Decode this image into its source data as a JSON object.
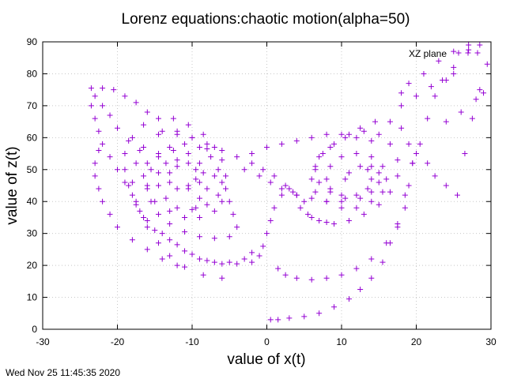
{
  "chart_data": {
    "type": "scatter",
    "title": "Lorenz equations:chaotic motion(alpha=50)",
    "xlabel": "value of x(t)",
    "ylabel": "value of z(t)",
    "xlim": [
      -30,
      30
    ],
    "ylim": [
      0,
      90
    ],
    "xticks": [
      "-30",
      "-20",
      "-10",
      "0",
      "10",
      "20",
      "30"
    ],
    "yticks": [
      "0",
      "10",
      "20",
      "30",
      "40",
      "50",
      "60",
      "70",
      "80",
      "90"
    ],
    "grid": true,
    "legend_position": "top-right",
    "marker": "plus",
    "color": "#9400d3",
    "series": [
      {
        "name": "XZ plane",
        "points": [
          [
            0.5,
            3
          ],
          [
            1.5,
            3
          ],
          [
            3,
            3.5
          ],
          [
            5,
            4
          ],
          [
            7,
            5
          ],
          [
            9,
            7
          ],
          [
            11,
            9.5
          ],
          [
            12.5,
            12.5
          ],
          [
            14,
            16
          ],
          [
            15.5,
            21
          ],
          [
            16.5,
            27
          ],
          [
            17.5,
            33
          ],
          [
            18.5,
            42
          ],
          [
            19.5,
            52
          ],
          [
            20.5,
            58
          ],
          [
            21.5,
            66
          ],
          [
            22.5,
            73
          ],
          [
            23.5,
            78
          ],
          [
            25,
            82
          ],
          [
            27,
            87.5
          ],
          [
            28.5,
            89
          ],
          [
            20,
            55
          ],
          [
            21.5,
            52
          ],
          [
            22.5,
            48
          ],
          [
            24,
            45
          ],
          [
            25.5,
            42
          ],
          [
            26.5,
            55
          ],
          [
            27.5,
            66
          ],
          [
            28.5,
            75
          ],
          [
            29.5,
            83
          ],
          [
            23,
            84
          ],
          [
            25,
            87
          ],
          [
            27,
            89
          ],
          [
            1.5,
            19
          ],
          [
            2.5,
            17
          ],
          [
            4,
            16
          ],
          [
            6,
            15.5
          ],
          [
            8,
            16
          ],
          [
            10,
            17
          ],
          [
            12,
            19
          ],
          [
            14,
            22
          ],
          [
            16,
            27
          ],
          [
            17.5,
            32
          ],
          [
            18.5,
            38
          ],
          [
            19,
            45
          ],
          [
            19.5,
            52
          ],
          [
            19,
            58
          ],
          [
            18,
            63
          ],
          [
            16.5,
            65
          ],
          [
            14.5,
            65
          ],
          [
            12.5,
            63
          ],
          [
            10.5,
            60
          ],
          [
            8.5,
            57
          ],
          [
            7,
            54
          ],
          [
            6.5,
            50
          ],
          [
            7,
            46
          ],
          [
            8.5,
            43
          ],
          [
            10.5,
            41
          ],
          [
            12.5,
            41
          ],
          [
            14,
            43
          ],
          [
            15,
            46
          ],
          [
            15,
            49
          ],
          [
            14,
            51
          ],
          [
            12.5,
            51
          ],
          [
            11,
            49
          ],
          [
            10.5,
            47
          ],
          [
            5,
            40
          ],
          [
            5.5,
            36
          ],
          [
            7,
            34
          ],
          [
            9,
            33
          ],
          [
            11,
            34
          ],
          [
            13,
            36
          ],
          [
            15,
            39
          ],
          [
            16.5,
            43
          ],
          [
            17.5,
            48
          ],
          [
            17.5,
            53
          ],
          [
            16.5,
            58
          ],
          [
            15,
            61
          ],
          [
            13,
            62
          ],
          [
            11,
            61
          ],
          [
            9,
            58
          ],
          [
            7.5,
            55
          ],
          [
            6.5,
            51
          ],
          [
            6,
            47
          ],
          [
            6.5,
            43
          ],
          [
            8,
            40
          ],
          [
            10,
            38
          ],
          [
            12,
            38
          ],
          [
            14,
            40
          ],
          [
            15.5,
            43
          ],
          [
            16,
            47
          ],
          [
            15.5,
            51
          ],
          [
            14,
            54
          ],
          [
            12,
            55
          ],
          [
            10,
            54
          ],
          [
            8.5,
            51
          ],
          [
            8,
            47
          ],
          [
            8.5,
            44
          ],
          [
            10,
            42
          ],
          [
            12,
            42
          ],
          [
            13.5,
            44
          ],
          [
            14,
            47
          ],
          [
            13.5,
            50
          ],
          [
            4,
            42
          ],
          [
            4.5,
            38
          ],
          [
            6,
            35
          ],
          [
            8,
            33.5
          ],
          [
            3,
            44
          ],
          [
            2,
            42
          ],
          [
            1,
            38
          ],
          [
            0.5,
            34
          ],
          [
            0,
            30
          ],
          [
            -0.5,
            26
          ],
          [
            -1,
            23
          ],
          [
            -2,
            21
          ],
          [
            -4,
            20.5
          ],
          [
            -6,
            20.5
          ],
          [
            -8,
            21.5
          ],
          [
            -10,
            23.5
          ],
          [
            -12,
            26.5
          ],
          [
            -14,
            30
          ],
          [
            -16,
            34
          ],
          [
            -17.5,
            39
          ],
          [
            -18.5,
            45
          ],
          [
            -19,
            50
          ],
          [
            -19,
            55
          ],
          [
            -18,
            60
          ],
          [
            -16.5,
            64
          ],
          [
            -14.5,
            66
          ],
          [
            -12.5,
            66
          ],
          [
            -10.5,
            64
          ],
          [
            -8.5,
            61
          ],
          [
            -7,
            57
          ],
          [
            -6,
            53
          ],
          [
            -5.5,
            48
          ],
          [
            -5.5,
            44
          ],
          [
            -6,
            40
          ],
          [
            -7,
            37
          ],
          [
            -9,
            35
          ],
          [
            -11,
            35
          ],
          [
            -13,
            37
          ],
          [
            -15,
            40
          ],
          [
            -16,
            44
          ],
          [
            -16.5,
            48
          ],
          [
            -16,
            52
          ],
          [
            -14.5,
            55
          ],
          [
            -12.5,
            56
          ],
          [
            -10.5,
            55
          ],
          [
            -9,
            52
          ],
          [
            -8.5,
            49
          ],
          [
            -9,
            46
          ],
          [
            -10.5,
            44
          ],
          [
            -12,
            44
          ],
          [
            -13,
            46
          ],
          [
            -13,
            49
          ],
          [
            -12,
            51
          ],
          [
            -5,
            40
          ],
          [
            -4.5,
            36
          ],
          [
            -4,
            32
          ],
          [
            -5,
            29
          ],
          [
            -7,
            28.5
          ],
          [
            -9,
            29
          ],
          [
            -11,
            30.5
          ],
          [
            -13,
            33
          ],
          [
            -14.5,
            36
          ],
          [
            -15.5,
            40
          ],
          [
            -16,
            45
          ],
          [
            -15.5,
            50
          ],
          [
            -14.5,
            54
          ],
          [
            -13,
            57
          ],
          [
            -11,
            58
          ],
          [
            -9,
            57
          ],
          [
            -7.5,
            54
          ],
          [
            -6.5,
            50
          ],
          [
            -6,
            46
          ],
          [
            -6.5,
            42
          ],
          [
            -8,
            39
          ],
          [
            -10,
            37.5
          ],
          [
            -12,
            38
          ],
          [
            -13.5,
            41
          ],
          [
            -14.5,
            45
          ],
          [
            -14.5,
            49
          ],
          [
            -13.5,
            52
          ],
          [
            -12,
            53
          ],
          [
            -10.5,
            52
          ],
          [
            -9.5,
            50
          ],
          [
            -9.5,
            47
          ],
          [
            -10.5,
            45
          ],
          [
            -2,
            24
          ],
          [
            -3,
            22
          ],
          [
            -5,
            21
          ],
          [
            -7,
            21
          ],
          [
            -9,
            22
          ],
          [
            -11,
            24.5
          ],
          [
            -13,
            28
          ],
          [
            -15,
            31
          ],
          [
            -16.5,
            35
          ],
          [
            -17.5,
            40
          ],
          [
            -18,
            46
          ],
          [
            -17.5,
            52
          ],
          [
            -16.5,
            57
          ],
          [
            -14.5,
            61
          ],
          [
            -12,
            62
          ],
          [
            -10,
            60
          ],
          [
            -8,
            56.5
          ],
          [
            -2,
            52
          ],
          [
            -4,
            54
          ],
          [
            -6,
            56
          ],
          [
            -8,
            58
          ],
          [
            -10,
            60
          ],
          [
            -12,
            61
          ],
          [
            -14,
            62
          ],
          [
            -0.5,
            50
          ],
          [
            1,
            48
          ],
          [
            2.5,
            45
          ],
          [
            3.5,
            43
          ],
          [
            -17,
            56
          ],
          [
            -18.5,
            59
          ],
          [
            -20,
            63
          ],
          [
            -21,
            67
          ],
          [
            -22,
            70
          ],
          [
            -23,
            73
          ],
          [
            -23.5,
            75.5
          ],
          [
            -22,
            75.5
          ],
          [
            -20.5,
            75
          ],
          [
            -19,
            73
          ],
          [
            -17.5,
            71
          ],
          [
            -16,
            68
          ],
          [
            -23.5,
            70
          ],
          [
            -23,
            66
          ],
          [
            -22.5,
            62
          ],
          [
            -22,
            58
          ],
          [
            -21,
            54
          ],
          [
            -20,
            50
          ],
          [
            -19,
            46
          ],
          [
            -18,
            42
          ],
          [
            -17,
            37
          ],
          [
            -16,
            32
          ],
          [
            -14.5,
            27
          ],
          [
            -13,
            23
          ],
          [
            -11,
            19.5
          ],
          [
            -8.5,
            17
          ],
          [
            -6,
            16
          ],
          [
            -3,
            50
          ],
          [
            -1,
            48
          ],
          [
            0.5,
            46
          ],
          [
            2,
            44
          ],
          [
            4,
            42
          ],
          [
            6,
            41
          ],
          [
            8,
            40
          ],
          [
            10,
            40
          ],
          [
            -2,
            55
          ],
          [
            0,
            57
          ],
          [
            2,
            58
          ],
          [
            4,
            59
          ],
          [
            6,
            60
          ],
          [
            8,
            61
          ],
          [
            10,
            61
          ],
          [
            12,
            60
          ],
          [
            14,
            59
          ],
          [
            18,
            70
          ],
          [
            20,
            73
          ],
          [
            22,
            76
          ],
          [
            24,
            78
          ],
          [
            25,
            80
          ],
          [
            18,
            74
          ],
          [
            19,
            77
          ],
          [
            21,
            80
          ],
          [
            24,
            65
          ],
          [
            26,
            68
          ],
          [
            28,
            72
          ],
          [
            29,
            74
          ],
          [
            -16,
            25
          ],
          [
            -18,
            28
          ],
          [
            -20,
            32
          ],
          [
            -21,
            36
          ],
          [
            -22,
            40
          ],
          [
            -22.5,
            44
          ],
          [
            -23,
            48
          ],
          [
            -23,
            52
          ],
          [
            -22.5,
            56
          ],
          [
            -12,
            20
          ],
          [
            -14,
            22
          ],
          [
            -7,
            48
          ],
          [
            -8,
            44
          ],
          [
            -9,
            41
          ],
          [
            -9.5,
            38
          ]
        ]
      }
    ]
  },
  "footer": {
    "timestamp": "Wed Nov 25 11:45:35 2020"
  }
}
